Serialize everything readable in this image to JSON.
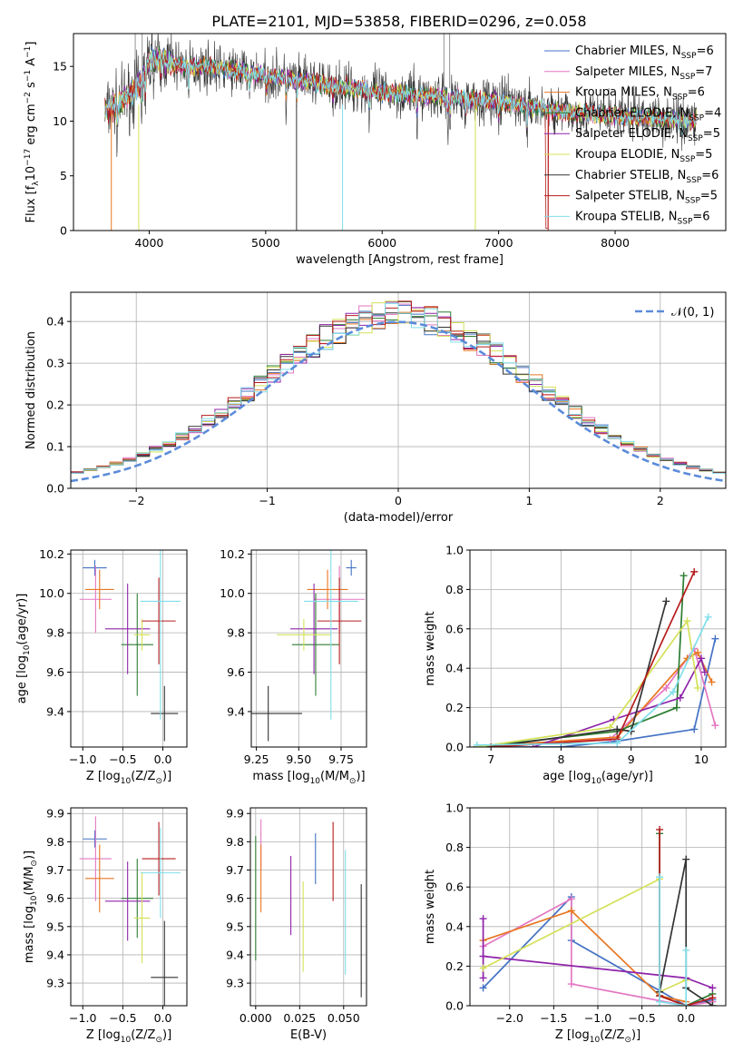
{
  "figure": {
    "title": "PLATE=2101, MJD=53858, FIBERID=0296, z=0.058"
  },
  "colors": {
    "Chabrier MILES": "#4472c4",
    "Salpeter MILES": "#e377c2",
    "Kroupa MILES": "#e87722",
    "Chabrier ELODIE": "#2e7d32",
    "Salpeter ELODIE": "#8e24aa",
    "Kroupa ELODIE": "#d4e157",
    "Chabrier STELIB": "#333333",
    "Salpeter STELIB": "#b71c1c",
    "Kroupa STELIB": "#80deea",
    "normal": "#5b8bd9",
    "grid": "#b0b0b0"
  },
  "legend_spectrum": [
    "Chabrier MILES, N_SSP=6",
    "Salpeter MILES, N_SSP=7",
    "Kroupa MILES, N_SSP=6",
    "Chabrier ELODIE, N_SSP=4",
    "Salpeter ELODIE, N_SSP=5",
    "Kroupa ELODIE, N_SSP=5",
    "Chabrier STELIB, N_SSP=6",
    "Salpeter STELIB, N_SSP=5",
    "Kroupa STELIB, N_SSP=6"
  ],
  "chart_data": [
    {
      "id": "spectrum",
      "type": "line",
      "xlabel": "wavelength [Angstrom, rest frame]",
      "ylabel": "Flux [f_λ10^-17 erg cm^-2 s^-1 A^-1]",
      "xlim": [
        3350,
        8950
      ],
      "ylim": [
        0,
        18
      ],
      "xticks": [
        4000,
        5000,
        6000,
        7000,
        8000
      ],
      "yticks": [
        0,
        5,
        10,
        15
      ],
      "continuum": {
        "x": [
          3620,
          3700,
          3900,
          3960,
          4000,
          4100,
          4300,
          4500,
          5000,
          5500,
          6000,
          6500,
          7000,
          7500,
          8000,
          8500,
          8700
        ],
        "y": [
          10.8,
          11.3,
          13.0,
          14.2,
          15.6,
          15.6,
          15.0,
          15.0,
          14.2,
          13.4,
          12.6,
          12.3,
          11.8,
          10.9,
          10.5,
          10.2,
          10.1
        ]
      },
      "legend": "top-right",
      "grid": false
    },
    {
      "id": "residuals",
      "type": "histogram",
      "xlabel": "(data-model)/error",
      "ylabel": "Normed distribution",
      "xlim": [
        -2.5,
        2.5
      ],
      "ylim": [
        0,
        0.47
      ],
      "xticks": [
        -2,
        -1,
        0,
        1,
        2
      ],
      "yticks": [
        0.0,
        0.1,
        0.2,
        0.3,
        0.4
      ],
      "legend": [
        "N(0,1)"
      ],
      "grid": true
    },
    {
      "id": "z_age",
      "type": "scatter",
      "xlabel": "Z [log10(Z/Z⊙)]",
      "ylabel": "age [log10(age/yr)]",
      "xlim": [
        -1.15,
        0.3
      ],
      "ylim": [
        9.22,
        10.22
      ],
      "xticks": [
        -1.0,
        -0.5,
        0.0
      ],
      "yticks": [
        9.4,
        9.6,
        9.8,
        10.0,
        10.2
      ],
      "points": [
        {
          "m": "Chabrier MILES",
          "x": -0.85,
          "y": 10.13,
          "ex": 0.15,
          "ey": 0.04
        },
        {
          "m": "Salpeter MILES",
          "x": -0.84,
          "y": 9.97,
          "ex": 0.2,
          "ey": 0.17
        },
        {
          "m": "Kroupa MILES",
          "x": -0.79,
          "y": 10.02,
          "ex": 0.18,
          "ey": 0.1
        },
        {
          "m": "Chabrier ELODIE",
          "x": -0.32,
          "y": 9.74,
          "ex": 0.2,
          "ey": 0.26
        },
        {
          "m": "Salpeter ELODIE",
          "x": -0.44,
          "y": 9.82,
          "ex": 0.28,
          "ey": 0.23
        },
        {
          "m": "Kroupa ELODIE",
          "x": -0.26,
          "y": 9.79,
          "ex": 0.1,
          "ey": 0.08
        },
        {
          "m": "Chabrier STELIB",
          "x": 0.02,
          "y": 9.39,
          "ex": 0.17,
          "ey": 0.14
        },
        {
          "m": "Salpeter STELIB",
          "x": -0.05,
          "y": 9.86,
          "ex": 0.21,
          "ey": 0.22
        },
        {
          "m": "Kroupa STELIB",
          "x": -0.03,
          "y": 9.96,
          "ex": 0.25,
          "ey": 0.6
        }
      ],
      "grid": true
    },
    {
      "id": "mass_age",
      "type": "scatter",
      "xlabel": "mass [log10(M/M⊙)]",
      "ylabel": "",
      "xlim": [
        9.22,
        9.9
      ],
      "ylim": [
        9.22,
        10.22
      ],
      "xticks": [
        9.25,
        9.5,
        9.75
      ],
      "yticks": [
        9.4,
        9.6,
        9.8,
        10.0,
        10.2
      ],
      "points": [
        {
          "m": "Chabrier MILES",
          "x": 9.81,
          "y": 10.13,
          "ex": 0.03,
          "ey": 0.04
        },
        {
          "m": "Salpeter MILES",
          "x": 9.74,
          "y": 9.97,
          "ex": 0.15,
          "ey": 0.17
        },
        {
          "m": "Kroupa MILES",
          "x": 9.67,
          "y": 10.02,
          "ex": 0.12,
          "ey": 0.1
        },
        {
          "m": "Chabrier ELODIE",
          "x": 9.6,
          "y": 9.74,
          "ex": 0.14,
          "ey": 0.26
        },
        {
          "m": "Salpeter ELODIE",
          "x": 9.59,
          "y": 9.82,
          "ex": 0.14,
          "ey": 0.23
        },
        {
          "m": "Kroupa ELODIE",
          "x": 9.53,
          "y": 9.79,
          "ex": 0.16,
          "ey": 0.08
        },
        {
          "m": "Chabrier STELIB",
          "x": 9.32,
          "y": 9.39,
          "ex": 0.2,
          "ey": 0.14
        },
        {
          "m": "Salpeter STELIB",
          "x": 9.74,
          "y": 9.86,
          "ex": 0.13,
          "ey": 0.22
        },
        {
          "m": "Kroupa STELIB",
          "x": 9.69,
          "y": 9.96,
          "ex": 0.16,
          "ey": 0.6
        }
      ],
      "grid": true
    },
    {
      "id": "age_weight",
      "type": "line",
      "xlabel": "age [log10(age/yr)]",
      "ylabel": "mass weight",
      "xlim": [
        6.7,
        10.35
      ],
      "ylim": [
        0,
        1.0
      ],
      "xticks": [
        7,
        8,
        9,
        10
      ],
      "yticks": [
        0.0,
        0.2,
        0.4,
        0.6,
        0.8,
        1.0
      ],
      "series": [
        {
          "m": "Chabrier MILES",
          "x": [
            6.8,
            8.0,
            8.8,
            9.9,
            10.2
          ],
          "y": [
            0.0,
            0.0,
            0.03,
            0.09,
            0.55
          ]
        },
        {
          "m": "Salpeter MILES",
          "x": [
            6.8,
            8.7,
            9.5,
            9.9,
            10.2
          ],
          "y": [
            0.0,
            0.04,
            0.3,
            0.5,
            0.11
          ]
        },
        {
          "m": "Kroupa MILES",
          "x": [
            6.8,
            8.8,
            9.8,
            9.95,
            10.15
          ],
          "y": [
            0.0,
            0.05,
            0.45,
            0.48,
            0.33
          ]
        },
        {
          "m": "Chabrier ELODIE",
          "x": [
            6.8,
            8.8,
            9.65,
            9.75
          ],
          "y": [
            0.0,
            0.08,
            0.2,
            0.87
          ]
        },
        {
          "m": "Salpeter ELODIE",
          "x": [
            7.6,
            8.75,
            9.7,
            10.0,
            10.05
          ],
          "y": [
            0.0,
            0.14,
            0.25,
            0.45,
            0.38
          ]
        },
        {
          "m": "Kroupa ELODIE",
          "x": [
            6.8,
            8.7,
            9.8,
            9.95
          ],
          "y": [
            0.0,
            0.1,
            0.64,
            0.3
          ]
        },
        {
          "m": "Chabrier STELIB",
          "x": [
            7.0,
            8.8,
            9.0,
            9.5
          ],
          "y": [
            0.0,
            0.09,
            0.08,
            0.74
          ]
        },
        {
          "m": "Salpeter STELIB",
          "x": [
            7.0,
            8.8,
            9.9
          ],
          "y": [
            0.0,
            0.04,
            0.89
          ]
        },
        {
          "m": "Kroupa STELIB",
          "x": [
            6.8,
            8.8,
            9.6,
            10.1
          ],
          "y": [
            0.01,
            0.02,
            0.28,
            0.66
          ]
        }
      ],
      "grid": true
    },
    {
      "id": "z_mass",
      "type": "scatter",
      "xlabel": "Z [log10(Z/Z⊙)]",
      "ylabel": "mass [log10(M/M⊙)]",
      "xlim": [
        -1.15,
        0.3
      ],
      "ylim": [
        9.22,
        9.92
      ],
      "xticks": [
        -1.0,
        -0.5,
        0.0
      ],
      "yticks": [
        9.3,
        9.4,
        9.5,
        9.6,
        9.7,
        9.8,
        9.9
      ],
      "points": [
        {
          "m": "Chabrier MILES",
          "x": -0.85,
          "y": 9.81,
          "ex": 0.15,
          "ey": 0.03
        },
        {
          "m": "Salpeter MILES",
          "x": -0.84,
          "y": 9.74,
          "ex": 0.2,
          "ey": 0.15
        },
        {
          "m": "Kroupa MILES",
          "x": -0.79,
          "y": 9.67,
          "ex": 0.18,
          "ey": 0.12
        },
        {
          "m": "Chabrier ELODIE",
          "x": -0.32,
          "y": 9.6,
          "ex": 0.2,
          "ey": 0.14
        },
        {
          "m": "Salpeter ELODIE",
          "x": -0.44,
          "y": 9.59,
          "ex": 0.28,
          "ey": 0.14
        },
        {
          "m": "Kroupa ELODIE",
          "x": -0.26,
          "y": 9.53,
          "ex": 0.1,
          "ey": 0.16
        },
        {
          "m": "Chabrier STELIB",
          "x": 0.02,
          "y": 9.32,
          "ex": 0.17,
          "ey": 0.2
        },
        {
          "m": "Salpeter STELIB",
          "x": -0.05,
          "y": 9.74,
          "ex": 0.21,
          "ey": 0.13
        },
        {
          "m": "Kroupa STELIB",
          "x": -0.03,
          "y": 9.69,
          "ex": 0.25,
          "ey": 0.16
        }
      ],
      "grid": true
    },
    {
      "id": "ebv_mass",
      "type": "scatter",
      "xlabel": "E(B-V)",
      "ylabel": "",
      "xlim": [
        -0.003,
        0.063
      ],
      "ylim": [
        9.22,
        9.92
      ],
      "xticks": [
        0.0,
        0.025,
        0.05
      ],
      "xticklabels": [
        "0.000",
        "0.025",
        "0.050"
      ],
      "yticks": [
        9.3,
        9.4,
        9.5,
        9.6,
        9.7,
        9.8,
        9.9
      ],
      "points": [
        {
          "m": "Chabrier MILES",
          "x": 0.034,
          "y": 9.74,
          "ex": 0,
          "ey": 0.09
        },
        {
          "m": "Salpeter MILES",
          "x": 0.003,
          "y": 9.79,
          "ex": 0,
          "ey": 0.09
        },
        {
          "m": "Kroupa MILES",
          "x": 0.003,
          "y": 9.67,
          "ex": 0,
          "ey": 0.12
        },
        {
          "m": "Chabrier ELODIE",
          "x": 0.0,
          "y": 9.6,
          "ex": 0,
          "ey": 0.22
        },
        {
          "m": "Salpeter ELODIE",
          "x": 0.02,
          "y": 9.61,
          "ex": 0,
          "ey": 0.14
        },
        {
          "m": "Kroupa ELODIE",
          "x": 0.027,
          "y": 9.5,
          "ex": 0,
          "ey": 0.16
        },
        {
          "m": "Chabrier STELIB",
          "x": 0.06,
          "y": 9.45,
          "ex": 0,
          "ey": 0.2
        },
        {
          "m": "Salpeter STELIB",
          "x": 0.044,
          "y": 9.73,
          "ex": 0,
          "ey": 0.14
        },
        {
          "m": "Kroupa STELIB",
          "x": 0.051,
          "y": 9.55,
          "ex": 0,
          "ey": 0.22
        }
      ],
      "grid": true
    },
    {
      "id": "z_weight",
      "type": "line",
      "xlabel": "Z [log10(Z/Z⊙)]",
      "ylabel": "mass weight",
      "xlim": [
        -2.45,
        0.45
      ],
      "ylim": [
        0,
        1.0
      ],
      "xticks": [
        -2.0,
        -1.5,
        -1.0,
        -0.5,
        0.0
      ],
      "yticks": [
        0.0,
        0.2,
        0.4,
        0.6,
        0.8,
        1.0
      ],
      "series": [
        {
          "m": "Chabrier MILES",
          "x": [
            -2.3,
            -1.3,
            -1.3,
            0.0,
            0.3
          ],
          "y": [
            0.09,
            0.55,
            0.33,
            0.0,
            0.03
          ]
        },
        {
          "m": "Salpeter MILES",
          "x": [
            -2.3,
            -1.3,
            -1.3,
            0.0,
            0.3
          ],
          "y": [
            0.3,
            0.54,
            0.11,
            0.0,
            0.02
          ]
        },
        {
          "m": "Kroupa MILES",
          "x": [
            -2.3,
            -1.3,
            -0.3,
            0.0
          ],
          "y": [
            0.33,
            0.48,
            0.05,
            0.02
          ]
        },
        {
          "m": "Chabrier ELODIE",
          "x": [
            -0.3,
            -0.3,
            0.0,
            0.3
          ],
          "y": [
            0.87,
            0.05,
            0.0,
            0.06
          ]
        },
        {
          "m": "Salpeter ELODIE",
          "x": [
            -2.3,
            -2.3,
            -2.3,
            0.0,
            0.3
          ],
          "y": [
            0.44,
            0.14,
            0.25,
            0.14,
            0.09
          ]
        },
        {
          "m": "Kroupa ELODIE",
          "x": [
            -2.3,
            -0.3,
            -0.3,
            0.0
          ],
          "y": [
            0.19,
            0.64,
            0.07,
            0.13
          ]
        },
        {
          "m": "Chabrier STELIB",
          "x": [
            -0.3,
            0.0,
            0.0,
            0.3
          ],
          "y": [
            0.07,
            0.74,
            0.09,
            0.0
          ]
        },
        {
          "m": "Salpeter STELIB",
          "x": [
            -0.3,
            -0.3,
            0.0,
            0.3
          ],
          "y": [
            0.89,
            0.05,
            0.0,
            0.04
          ]
        },
        {
          "m": "Kroupa STELIB",
          "x": [
            -0.3,
            -0.3,
            0.0,
            0.0
          ],
          "y": [
            0.65,
            0.02,
            0.0,
            0.28
          ]
        }
      ],
      "grid": true
    }
  ]
}
